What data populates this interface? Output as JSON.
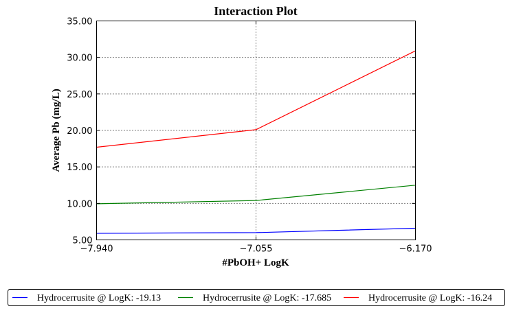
{
  "chart_data": {
    "type": "line",
    "title": "Interaction Plot",
    "xlabel": "#PbOH+ LogK",
    "ylabel": "Average Pb (mg/L)",
    "x": [
      -7.94,
      -7.055,
      -6.17
    ],
    "x_tick_labels": [
      "−7.940",
      "−7.055",
      "−6.170"
    ],
    "xlim": [
      -7.94,
      -6.17
    ],
    "ylim": [
      5,
      35
    ],
    "y_ticks": [
      5,
      10,
      15,
      20,
      25,
      30,
      35
    ],
    "y_tick_labels": [
      "5.00",
      "10.00",
      "15.00",
      "20.00",
      "25.00",
      "30.00",
      "35.00"
    ],
    "grid": true,
    "legend_position": "bottom",
    "series": [
      {
        "name": "Hydrocerrusite @ LogK: -19.13",
        "color": "#0000ff",
        "values": [
          5.9,
          6.0,
          6.6
        ]
      },
      {
        "name": "Hydrocerrusite @ LogK: -17.685",
        "color": "#008000",
        "values": [
          9.95,
          10.4,
          12.5
        ]
      },
      {
        "name": "Hydrocerrusite @ LogK: -16.24",
        "color": "#ff0000",
        "values": [
          17.7,
          20.1,
          30.9
        ]
      }
    ]
  }
}
